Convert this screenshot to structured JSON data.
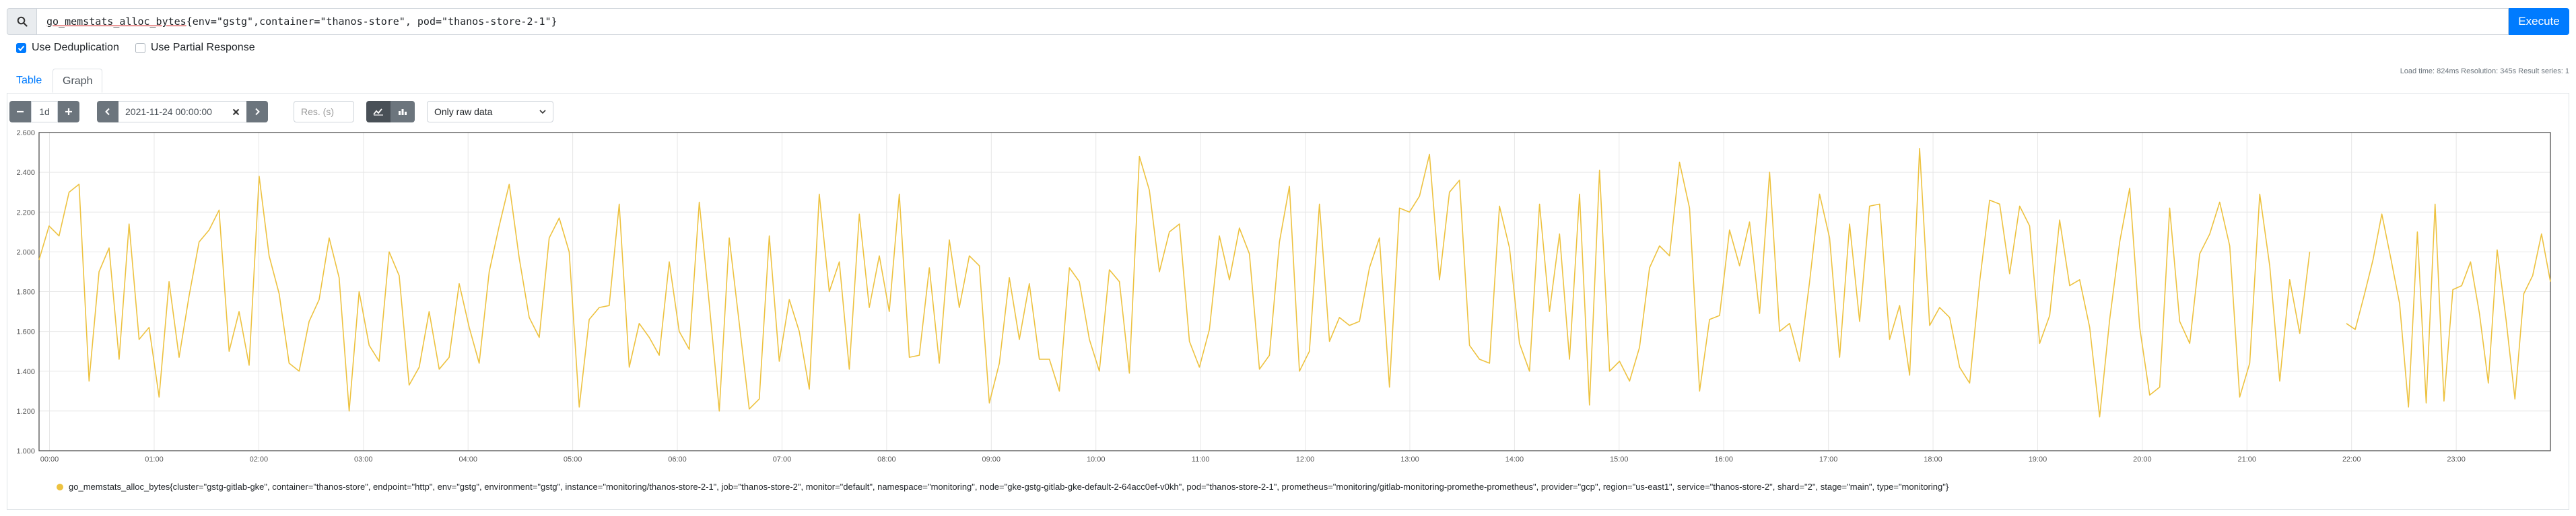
{
  "query": {
    "metric": "go_memstats_alloc_bytes",
    "labels": "{env=\"gstg\",container=\"thanos-store\", pod=\"thanos-store-2-1\"}",
    "execute_label": "Execute"
  },
  "options": {
    "dedup_label": "Use Deduplication",
    "dedup_checked": true,
    "partial_label": "Use Partial Response",
    "partial_checked": false
  },
  "tabs": {
    "table": "Table",
    "graph": "Graph",
    "active": "graph"
  },
  "stats": "Load time: 824ms   Resolution: 345s   Result series: 1",
  "controls": {
    "range": "1d",
    "end_time": "2021-11-24 00:00:00",
    "res_placeholder": "Res. (s)",
    "stack_mode": "Only raw data"
  },
  "icons": [
    "search-icon",
    "checkmark-icon",
    "minus-icon",
    "plus-icon",
    "chevron-left-icon",
    "chevron-right-icon",
    "clear-icon",
    "line-chart-icon",
    "stacked-chart-icon",
    "chevron-down-icon"
  ],
  "chart_data": {
    "type": "line",
    "title": "",
    "xlabel": "",
    "ylabel": "",
    "color": "#edc240",
    "grid": true,
    "ylim": [
      1000,
      2600
    ],
    "yticks": [
      "1.000",
      "1.200",
      "1.400",
      "1.600",
      "1.800",
      "2.000",
      "2.200",
      "2.400",
      "2.600"
    ],
    "xlim": [
      -0.1,
      23.9
    ],
    "xticks": [
      "00:00",
      "01:00",
      "02:00",
      "03:00",
      "04:00",
      "05:00",
      "06:00",
      "07:00",
      "08:00",
      "09:00",
      "10:00",
      "11:00",
      "12:00",
      "13:00",
      "14:00",
      "15:00",
      "16:00",
      "17:00",
      "18:00",
      "19:00",
      "20:00",
      "21:00",
      "22:00",
      "23:00"
    ],
    "series": [
      {
        "name": "go_memstats_alloc_bytes{cluster=\"gstg-gitlab-gke\", container=\"thanos-store\", endpoint=\"http\", env=\"gstg\", environment=\"gstg\", instance=\"monitoring/thanos-store-2-1\", job=\"thanos-store-2\", monitor=\"default\", namespace=\"monitoring\", node=\"gke-gstg-gitlab-gke-default-2-64acc0ef-v0kh\", pod=\"thanos-store-2-1\", prometheus=\"monitoring/gitlab-monitoring-promethe-prometheus\", provider=\"gcp\", region=\"us-east1\", service=\"thanos-store-2\", shard=\"2\", stage=\"main\", type=\"monitoring\"}",
        "segments": [
          [
            1960,
            2130,
            2080,
            2300,
            2340,
            1350,
            1900,
            2020,
            1460,
            2140,
            1560,
            1620,
            1270,
            1850,
            1470,
            1780,
            2050,
            2110,
            2210,
            1500,
            1700,
            1430,
            2380,
            1980,
            1790,
            1440,
            1400,
            1650,
            1760,
            2070,
            1870,
            1200,
            1800,
            1530,
            1450,
            2000,
            1880,
            1330,
            1420,
            1700,
            1410,
            1470,
            1840,
            1620,
            1440,
            1900,
            2130,
            2340,
            1970,
            1670,
            1570,
            2070,
            2170,
            2000,
            1220,
            1660,
            1720,
            1730,
            2240,
            1420,
            1640,
            1570,
            1480,
            1950,
            1600,
            1510,
            2250,
            1740,
            1200,
            2070,
            1640,
            1210,
            1260,
            2080,
            1450,
            1760,
            1600,
            1310,
            2290,
            1800,
            1950,
            1410,
            2190,
            1720,
            1980,
            1700,
            2290,
            1470,
            1480,
            1920,
            1440,
            2060,
            1720,
            1980,
            1930,
            1240,
            1440,
            1870,
            1560,
            1840,
            1460,
            1460,
            1300,
            1920,
            1850,
            1560,
            1400,
            1910,
            1850,
            1390,
            2480,
            2310,
            1900,
            2100,
            2140,
            1550,
            1420,
            1610,
            2080,
            1860,
            2120,
            1990,
            1410,
            1480,
            2050,
            2330,
            1400,
            1500,
            2240,
            1550,
            1670,
            1630,
            1650,
            1920,
            2070,
            1320,
            2220,
            2200,
            2280,
            2490,
            1860,
            2300,
            2360,
            1530,
            1460,
            1440,
            2230,
            2020,
            1540,
            1400,
            2240,
            1700,
            2090,
            1460,
            2290,
            1230,
            2410,
            1400,
            1450,
            1350,
            1520,
            1920,
            2030,
            1980,
            2450,
            2220,
            1300,
            1660,
            1680,
            2110,
            1930,
            2150,
            1690,
            2400,
            1600,
            1640,
            1450,
            1850,
            2290,
            2070,
            1470,
            2140,
            1650,
            2230,
            2240,
            1560,
            1730,
            1380,
            2520,
            1630,
            1720,
            1670,
            1420,
            1340,
            1850,
            2260,
            2240,
            1890,
            2230,
            2130,
            1540,
            1680,
            2160,
            1830,
            1860,
            1620,
            1170,
            1660,
            2050,
            2320,
            1620,
            1280,
            1320,
            2220,
            1650,
            1540,
            1990,
            2090,
            2250,
            2030,
            1270,
            1440,
            2290,
            1930,
            1350,
            1860,
            1590,
            2000
          ]
        ],
        "segment2": [
          1640,
          1610,
          1780,
          1960,
          2190,
          1970,
          1740,
          1220,
          2100,
          1240,
          2240,
          1250,
          1810,
          1830,
          1950,
          1690,
          1340,
          2010,
          1660,
          1260,
          1790,
          1880,
          2090,
          1850
        ]
      }
    ]
  }
}
